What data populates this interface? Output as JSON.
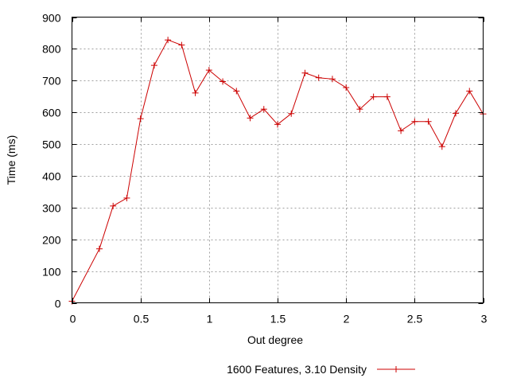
{
  "chart_data": {
    "type": "line",
    "title": "",
    "xlabel": "Out degree",
    "ylabel": "Time (ms)",
    "xlim": [
      0,
      3
    ],
    "ylim": [
      0,
      900
    ],
    "xticks": [
      0,
      0.5,
      1,
      1.5,
      2,
      2.5,
      3
    ],
    "xtick_labels": [
      "0",
      "0.5",
      "1",
      "1.5",
      "2",
      "2.5",
      "3"
    ],
    "yticks": [
      0,
      100,
      200,
      300,
      400,
      500,
      600,
      700,
      800,
      900
    ],
    "ytick_labels": [
      "0",
      "100",
      "200",
      "300",
      "400",
      "500",
      "600",
      "700",
      "800",
      "900"
    ],
    "grid": true,
    "legend_position": "bottom-center",
    "series": [
      {
        "name": "1600 Features, 3.10 Density",
        "color": "#cc0000",
        "marker": "plus",
        "x": [
          0,
          0.2,
          0.3,
          0.4,
          0.5,
          0.6,
          0.7,
          0.8,
          0.9,
          1.0,
          1.1,
          1.2,
          1.3,
          1.4,
          1.5,
          1.6,
          1.7,
          1.8,
          1.9,
          2.0,
          2.1,
          2.2,
          2.3,
          2.4,
          2.5,
          2.6,
          2.7,
          2.8,
          2.9,
          3.0
        ],
        "y": [
          5,
          170,
          305,
          330,
          580,
          748,
          828,
          812,
          661,
          733,
          697,
          667,
          582,
          610,
          562,
          596,
          724,
          709,
          705,
          678,
          610,
          649,
          649,
          542,
          571,
          571,
          492,
          597,
          667,
          595
        ]
      }
    ]
  }
}
